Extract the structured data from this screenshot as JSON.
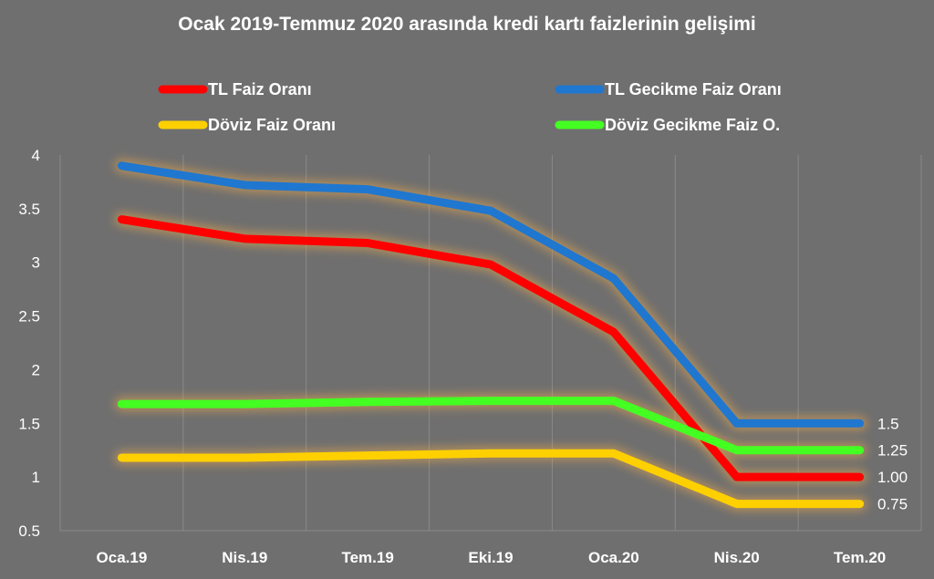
{
  "chart_data": {
    "type": "line",
    "title": "Ocak 2019-Temmuz 2020 arasında kredi kartı faizlerinin gelişimi",
    "xlabel": "",
    "ylabel": "",
    "categories": [
      "Oca.19",
      "Nis.19",
      "Tem.19",
      "Eki.19",
      "Oca.20",
      "Nis.20",
      "Tem.20"
    ],
    "ylim": [
      0.5,
      4
    ],
    "yticks": [
      "0.5",
      "1",
      "1.5",
      "2",
      "2.5",
      "3",
      "3.5",
      "4"
    ],
    "grid": "vertical",
    "legend_position": "top",
    "series": [
      {
        "name": "TL Faiz Oranı",
        "color": "#ff0000",
        "values": [
          3.4,
          3.22,
          3.18,
          2.98,
          2.35,
          1.0,
          1.0
        ]
      },
      {
        "name": "TL Gecikme Faiz Oranı",
        "color": "#1f77d0",
        "values": [
          3.9,
          3.72,
          3.68,
          3.48,
          2.85,
          1.5,
          1.5
        ]
      },
      {
        "name": "Döviz Faiz Oranı",
        "color": "#ffd000",
        "values": [
          1.18,
          1.18,
          1.2,
          1.22,
          1.22,
          0.75,
          0.75
        ]
      },
      {
        "name": "Döviz Gecikme Faiz O.",
        "color": "#44ff22",
        "values": [
          1.68,
          1.68,
          1.7,
          1.71,
          1.71,
          1.25,
          1.25
        ]
      }
    ],
    "end_labels": [
      {
        "text": "1.5",
        "value": 1.5
      },
      {
        "text": "1.25",
        "value": 1.25
      },
      {
        "text": "1.00",
        "value": 1.0
      },
      {
        "text": "0.75",
        "value": 0.75
      }
    ]
  }
}
